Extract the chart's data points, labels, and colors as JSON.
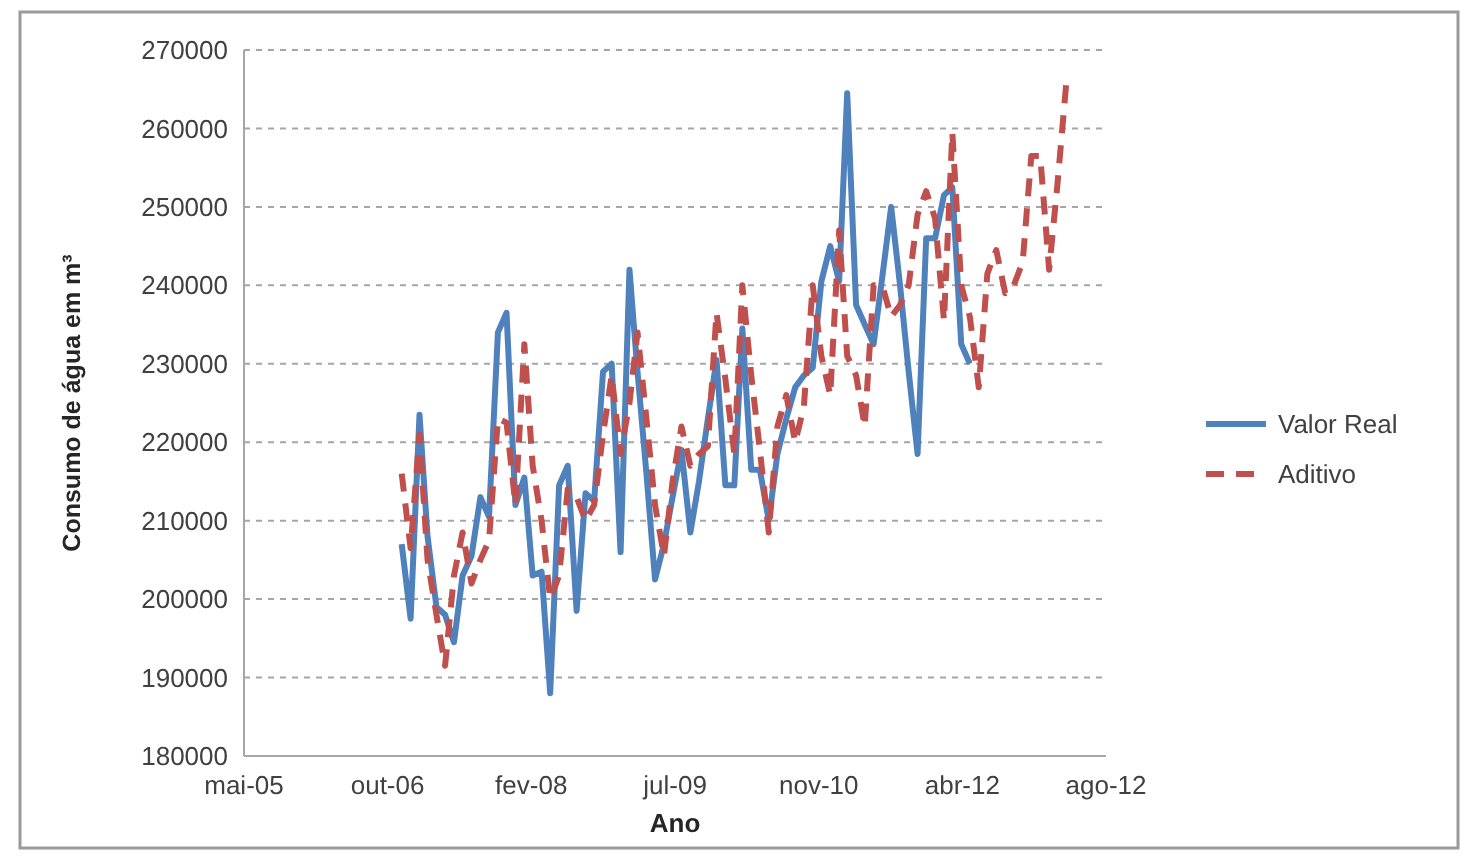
{
  "chart_data": {
    "type": "line",
    "xlabel": "Ano",
    "ylabel": "Consumo de água em m³",
    "x": [
      "2006-12",
      "2007-01",
      "2007-02",
      "2007-03",
      "2007-04",
      "2007-05",
      "2007-06",
      "2007-07",
      "2007-08",
      "2007-09",
      "2007-10",
      "2007-11",
      "2007-12",
      "2008-01",
      "2008-02",
      "2008-03",
      "2008-04",
      "2008-05",
      "2008-06",
      "2008-07",
      "2008-08",
      "2008-09",
      "2008-10",
      "2008-11",
      "2008-12",
      "2009-01",
      "2009-02",
      "2009-03",
      "2009-04",
      "2009-05",
      "2009-06",
      "2009-07",
      "2009-08",
      "2009-09",
      "2009-10",
      "2009-11",
      "2009-12",
      "2010-01",
      "2010-02",
      "2010-03",
      "2010-04",
      "2010-05",
      "2010-06",
      "2010-07",
      "2010-08",
      "2010-09",
      "2010-10",
      "2010-11",
      "2010-12",
      "2011-01",
      "2011-02",
      "2011-03",
      "2011-04",
      "2011-05",
      "2011-06",
      "2011-07",
      "2011-08",
      "2011-09",
      "2011-10",
      "2011-11",
      "2011-12",
      "2012-01",
      "2012-02",
      "2012-03",
      "2012-04",
      "2012-05",
      "2012-06",
      "2012-07",
      "2012-08",
      "2012-09",
      "2012-10",
      "2012-11",
      "2012-12",
      "2013-01",
      "2013-02",
      "2013-03",
      "2013-04"
    ],
    "series": [
      {
        "name": "Valor Real",
        "color": "#4f81bd",
        "line_style": "solid",
        "values": [
          207000,
          197500,
          223500,
          208000,
          199000,
          198000,
          194500,
          203000,
          205500,
          213000,
          210500,
          234000,
          236500,
          212000,
          215500,
          203000,
          203500,
          188000,
          214500,
          217000,
          198500,
          213500,
          212500,
          229000,
          230000,
          206000,
          242000,
          229000,
          216000,
          202500,
          207000,
          213000,
          219000,
          208500,
          215000,
          223000,
          230500,
          214500,
          214500,
          234500,
          216500,
          216500,
          210000,
          218500,
          223000,
          227000,
          228500,
          229500,
          240500,
          245000,
          240500,
          264500,
          237500,
          235000,
          232500,
          241000,
          250000,
          240000,
          229000,
          218500,
          246000,
          246000,
          251500,
          252500,
          232500,
          230000,
          null,
          null,
          null,
          null,
          null,
          null,
          null,
          null,
          null,
          null,
          null
        ]
      },
      {
        "name": "Aditivo",
        "color": "#c0504d",
        "line_style": "dashed",
        "values": [
          216000,
          206500,
          221000,
          205000,
          198000,
          191500,
          203000,
          208500,
          202000,
          205000,
          207500,
          223000,
          222500,
          212000,
          232500,
          217000,
          210000,
          200000,
          203000,
          214000,
          213000,
          210000,
          212000,
          221000,
          228500,
          218500,
          225000,
          234000,
          223000,
          212000,
          205500,
          215000,
          222000,
          217000,
          218500,
          219500,
          236500,
          228000,
          218500,
          240000,
          228500,
          219000,
          208500,
          222000,
          226000,
          220000,
          224500,
          240000,
          231000,
          226000,
          247000,
          231000,
          228500,
          222000,
          240000,
          240000,
          236000,
          237500,
          240000,
          249000,
          252000,
          248500,
          235500,
          259500,
          240000,
          236000,
          227000,
          241500,
          244500,
          239000,
          240000,
          243000,
          256500,
          256500,
          242000,
          252500,
          265500
        ]
      }
    ],
    "xlim": [
      "2005-05-31",
      "2013-08-18"
    ],
    "xticks": [
      {
        "value": "2005-05-31",
        "label": "mai-05"
      },
      {
        "value": "2006-10-13",
        "label": "out-06"
      },
      {
        "value": "2008-02-25",
        "label": "fev-08"
      },
      {
        "value": "2009-07-10",
        "label": "jul-09"
      },
      {
        "value": "2010-11-22",
        "label": "nov-10"
      },
      {
        "value": "2012-04-05",
        "label": "abr-12"
      },
      {
        "value": "2013-08-18",
        "label": "ago-12"
      }
    ],
    "ylim": [
      180000,
      270000
    ],
    "yticks": [
      180000,
      190000,
      200000,
      210000,
      220000,
      230000,
      240000,
      250000,
      260000,
      270000
    ],
    "grid": "y",
    "legend": "right"
  }
}
